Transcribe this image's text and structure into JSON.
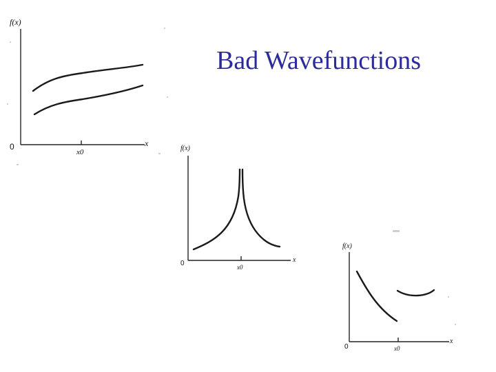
{
  "title": "Bad Wavefunctions",
  "graphs": [
    {
      "id": "graph1",
      "y_label": "f(x)",
      "x_label": "x",
      "origin_label": "0",
      "x_tick_label": "x0"
    },
    {
      "id": "graph2",
      "y_label": "f(x)",
      "x_label": "x",
      "origin_label": "0",
      "x_tick_label": "x0"
    },
    {
      "id": "graph3",
      "y_label": "f(x)",
      "x_label": "x",
      "origin_label": "0",
      "x_tick_label": "x0"
    }
  ],
  "colors": {
    "title": "#2b2b9a",
    "ink": "#1a1a1a"
  }
}
